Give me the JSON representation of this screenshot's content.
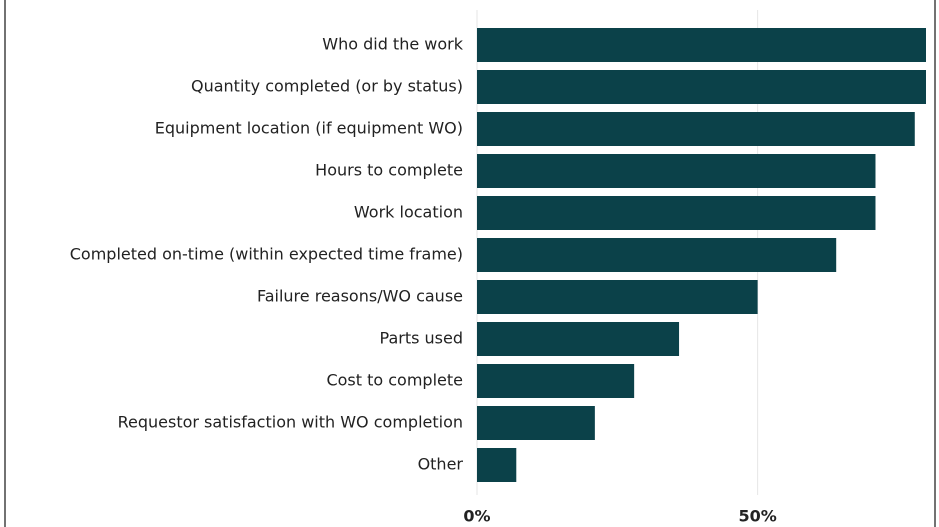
{
  "chart_data": {
    "type": "barh",
    "categories": [
      "Who did the work",
      "Quantity completed (or by status)",
      "Equipment location (if equipment WO)",
      "Hours to complete",
      "Work location",
      "Completed on-time (within expected time frame)",
      "Failure reasons/WO cause",
      "Parts used",
      "Cost to complete",
      "Requestor satisfaction with WO completion",
      "Other"
    ],
    "values": [
      80,
      80,
      78,
      71,
      71,
      64,
      50,
      36,
      28,
      21,
      7
    ],
    "color": "#0b4149",
    "xlim": [
      0,
      80
    ],
    "xticks": [
      {
        "value": 0,
        "label": "0%"
      },
      {
        "value": 50,
        "label": "50%"
      }
    ],
    "grid": true
  }
}
